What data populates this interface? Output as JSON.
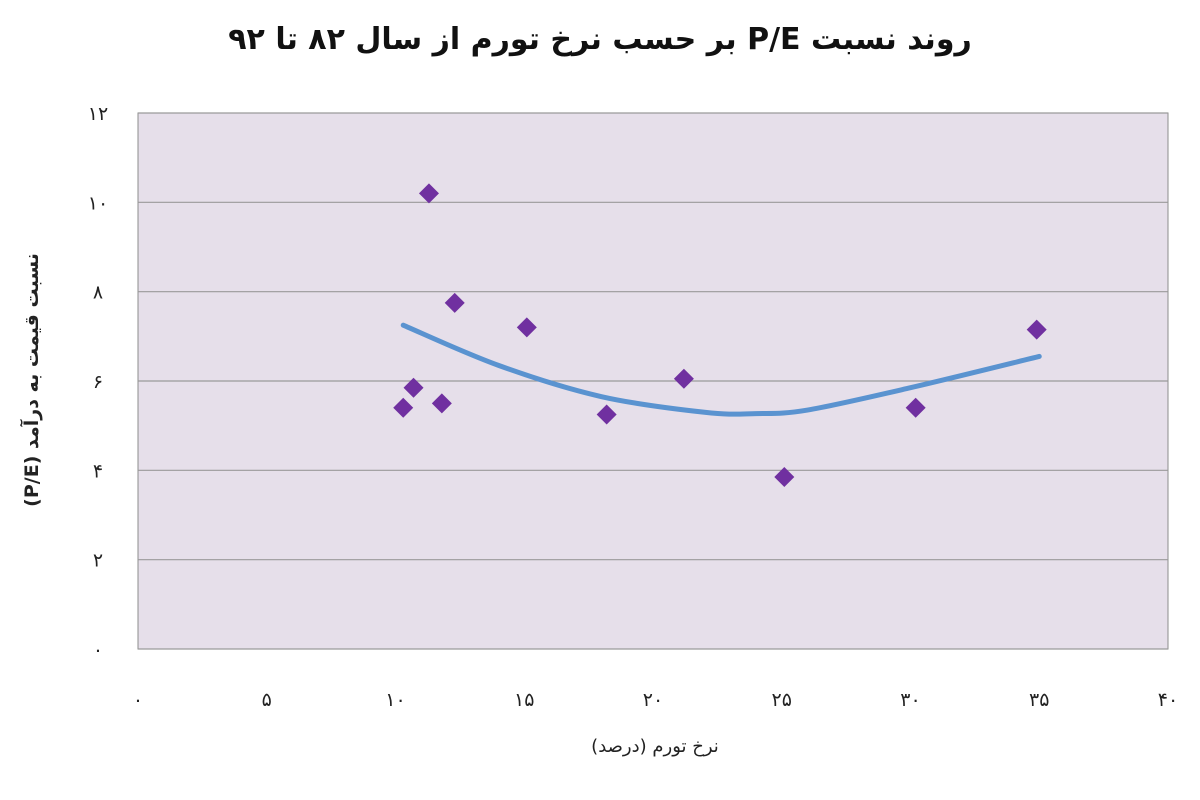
{
  "chart_data": {
    "type": "scatter",
    "title": "روند نسبت P/E بر حسب نرخ تورم از سال ۸۲ تا ۹۲",
    "xlabel": "نرخ تورم (درصد)",
    "ylabel": "نسبت قیمت به درآمد (P/E)",
    "xlim": [
      0,
      40
    ],
    "ylim": [
      0,
      12
    ],
    "x_ticks": [
      0,
      5,
      10,
      15,
      20,
      25,
      30,
      35,
      40
    ],
    "y_ticks": [
      0,
      2,
      4,
      6,
      8,
      10,
      12
    ],
    "x_tick_labels": [
      "۰",
      "۵",
      "۱۰",
      "۱۵",
      "۲۰",
      "۲۵",
      "۳۰",
      "۳۵",
      "۴۰"
    ],
    "y_tick_labels": [
      "۰",
      "۲",
      "۴",
      "۶",
      "۸",
      "۱۰",
      "۱۲"
    ],
    "grid": true,
    "points": [
      {
        "x": 10.3,
        "y": 5.4
      },
      {
        "x": 10.7,
        "y": 5.85
      },
      {
        "x": 11.3,
        "y": 10.2
      },
      {
        "x": 11.8,
        "y": 5.5
      },
      {
        "x": 12.3,
        "y": 7.75
      },
      {
        "x": 15.1,
        "y": 7.2
      },
      {
        "x": 18.2,
        "y": 5.25
      },
      {
        "x": 21.2,
        "y": 6.05
      },
      {
        "x": 25.1,
        "y": 3.85
      },
      {
        "x": 30.2,
        "y": 5.4
      },
      {
        "x": 34.9,
        "y": 7.15
      }
    ],
    "trendline": {
      "type": "polynomial",
      "x": [
        10.3,
        14,
        18,
        22,
        24,
        26,
        30,
        35
      ],
      "y": [
        7.25,
        6.35,
        5.65,
        5.3,
        5.27,
        5.35,
        5.85,
        6.55
      ]
    },
    "colors": {
      "plot_background": "#e6dfea",
      "grid": "#9a9a9a",
      "marker": "#7030a0",
      "trendline": "#5a93d0"
    }
  }
}
